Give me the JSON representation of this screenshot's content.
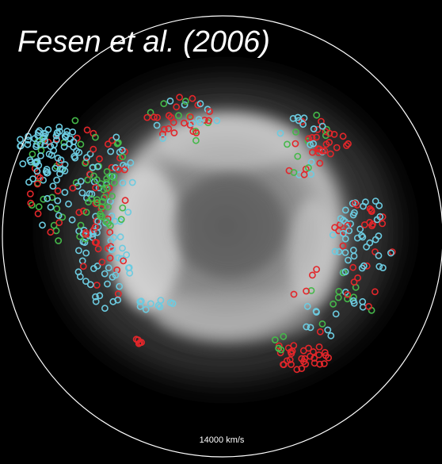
{
  "title": "Fesen et al. (2006)",
  "scale_label": "14000 km/s"
}
